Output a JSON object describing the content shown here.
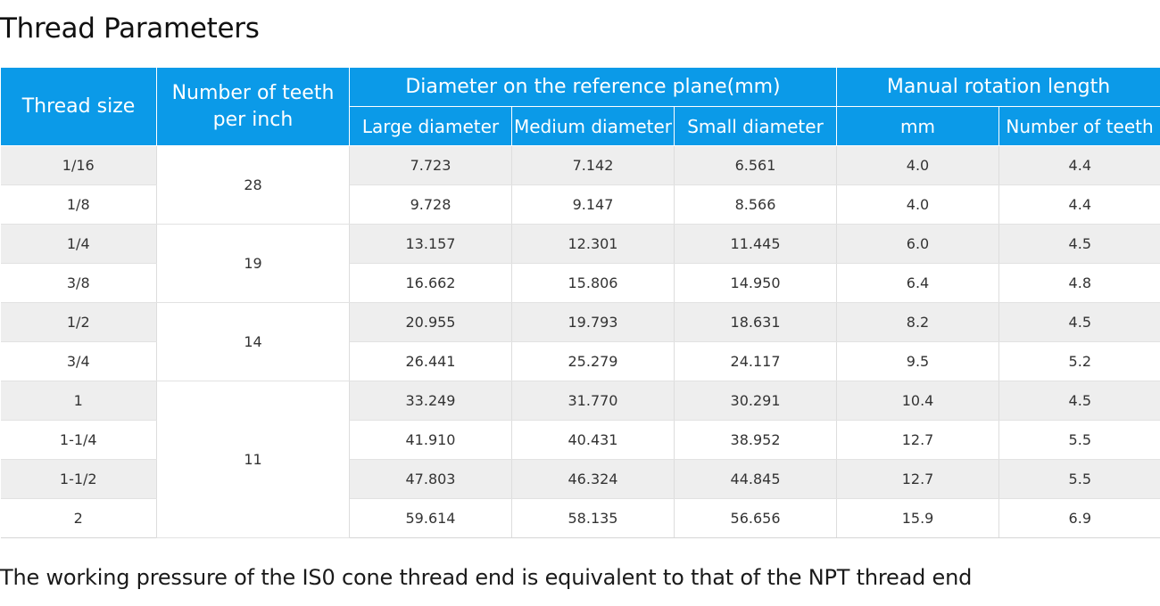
{
  "title": "Thread Parameters",
  "table": {
    "headers": {
      "thread_size": "Thread size",
      "teeth_per_inch_line1": "Number of teeth",
      "teeth_per_inch_line2": "per inch",
      "diameter_group": "Diameter on the reference plane(mm)",
      "large_diameter": "Large diameter",
      "medium_diameter": "Medium diameter",
      "small_diameter": "Small diameter",
      "manual_rotation_group": "Manual rotation length",
      "mm": "mm",
      "number_of_teeth": "Number of teeth"
    },
    "rows": [
      {
        "size": "1/16",
        "large": "7.723",
        "medium": "7.142",
        "small": "6.561",
        "mm": "4.0",
        "teeth": "4.4"
      },
      {
        "size": "1/8",
        "large": "9.728",
        "medium": "9.147",
        "small": "8.566",
        "mm": "4.0",
        "teeth": "4.4"
      },
      {
        "size": "1/4",
        "large": "13.157",
        "medium": "12.301",
        "small": "11.445",
        "mm": "6.0",
        "teeth": "4.5"
      },
      {
        "size": "3/8",
        "large": "16.662",
        "medium": "15.806",
        "small": "14.950",
        "mm": "6.4",
        "teeth": "4.8"
      },
      {
        "size": "1/2",
        "large": "20.955",
        "medium": "19.793",
        "small": "18.631",
        "mm": "8.2",
        "teeth": "4.5"
      },
      {
        "size": "3/4",
        "large": "26.441",
        "medium": "25.279",
        "small": "24.117",
        "mm": "9.5",
        "teeth": "5.2"
      },
      {
        "size": "1",
        "large": "33.249",
        "medium": "31.770",
        "small": "30.291",
        "mm": "10.4",
        "teeth": "4.5"
      },
      {
        "size": "1-1/4",
        "large": "41.910",
        "medium": "40.431",
        "small": "38.952",
        "mm": "12.7",
        "teeth": "5.5"
      },
      {
        "size": "1-1/2",
        "large": "47.803",
        "medium": "46.324",
        "small": "44.845",
        "mm": "12.7",
        "teeth": "5.5"
      },
      {
        "size": "2",
        "large": "59.614",
        "medium": "58.135",
        "small": "56.656",
        "mm": "15.9",
        "teeth": "6.9"
      }
    ],
    "teeth_per_inch_groups": [
      "28",
      "19",
      "14",
      "11"
    ]
  },
  "footnote": "The working pressure of the IS0 cone thread end is equivalent to that of the NPT thread end"
}
